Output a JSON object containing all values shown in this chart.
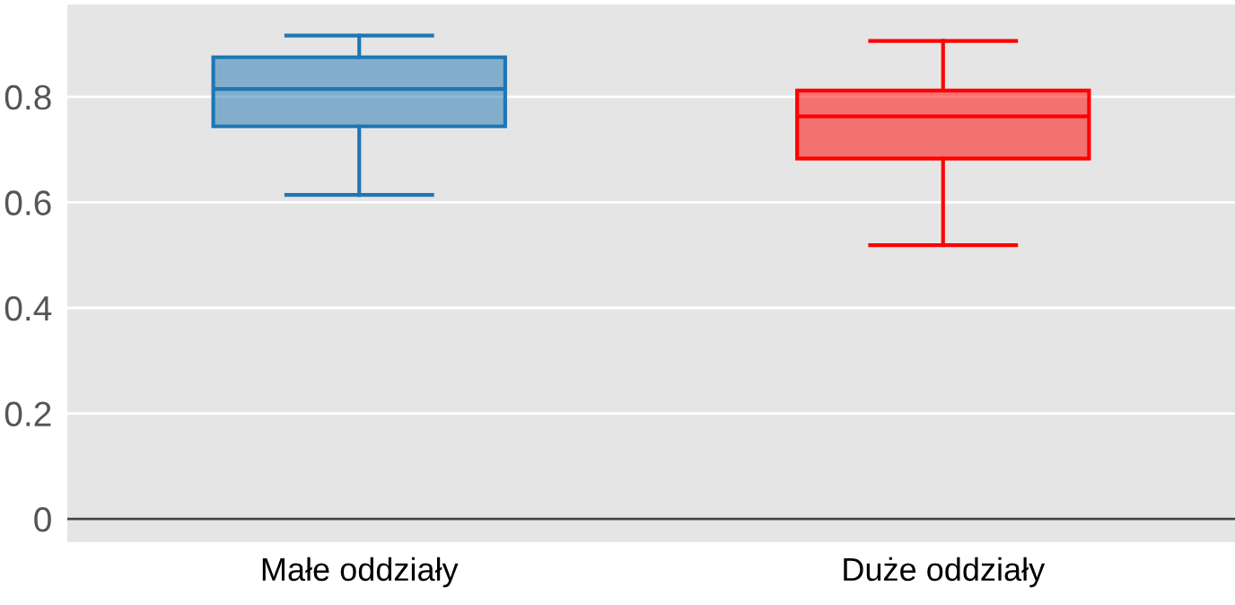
{
  "chart_data": {
    "type": "box",
    "categories": [
      "Małe oddziały",
      "Duże oddziały"
    ],
    "boxes": [
      {
        "low": 0.614,
        "q1": 0.744,
        "median": 0.815,
        "q3": 0.875,
        "high": 0.916
      },
      {
        "low": 0.519,
        "q1": 0.683,
        "median": 0.763,
        "q3": 0.812,
        "high": 0.906
      }
    ],
    "colors": [
      "#1f77b4",
      "#ff0000"
    ],
    "ylim": [
      -0.044,
      0.975
    ],
    "yticks": [
      0,
      0.2,
      0.4,
      0.6,
      0.8
    ],
    "grid": "y",
    "ref_lines": [
      {
        "axis": "y",
        "value": 0,
        "color": "#444444"
      }
    ]
  }
}
